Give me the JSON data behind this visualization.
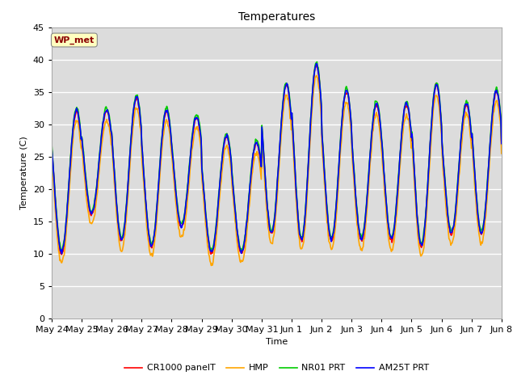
{
  "title": "Temperatures",
  "xlabel": "Time",
  "ylabel": "Temperature (C)",
  "ylim": [
    0,
    45
  ],
  "yticks": [
    0,
    5,
    10,
    15,
    20,
    25,
    30,
    35,
    40,
    45
  ],
  "x_labels": [
    "May 24",
    "May 25",
    "May 26",
    "May 27",
    "May 28",
    "May 29",
    "May 30",
    "May 31",
    "Jun 1",
    "Jun 2",
    "Jun 3",
    "Jun 4",
    "Jun 5",
    "Jun 6",
    "Jun 7",
    "Jun 8"
  ],
  "annotation_text": "WP_met",
  "annotation_color": "#8B0000",
  "annotation_bg": "#FFFFC0",
  "fig_bg": "#FFFFFF",
  "plot_bg": "#DCDCDC",
  "legend_entries": [
    "CR1000 panelT",
    "HMP",
    "NR01 PRT",
    "AM25T PRT"
  ],
  "line_colors": [
    "#FF0000",
    "#FFA500",
    "#00CC00",
    "#0000FF"
  ],
  "line_width": 1.2,
  "grid_color": "#FFFFFF",
  "days": 15,
  "peaks": [
    32,
    10,
    32,
    16,
    34,
    12,
    32,
    11,
    31,
    14,
    28,
    10,
    27,
    10,
    36,
    13,
    39,
    12,
    35,
    12,
    33,
    12,
    33,
    12,
    36,
    11,
    33,
    13,
    35,
    13
  ],
  "offsets_cr1000": 0.0,
  "offsets_hmp": -1.5,
  "offsets_nr01": 0.5,
  "offsets_am25t": 0.2,
  "title_fontsize": 10,
  "axis_fontsize": 8,
  "tick_fontsize": 8
}
